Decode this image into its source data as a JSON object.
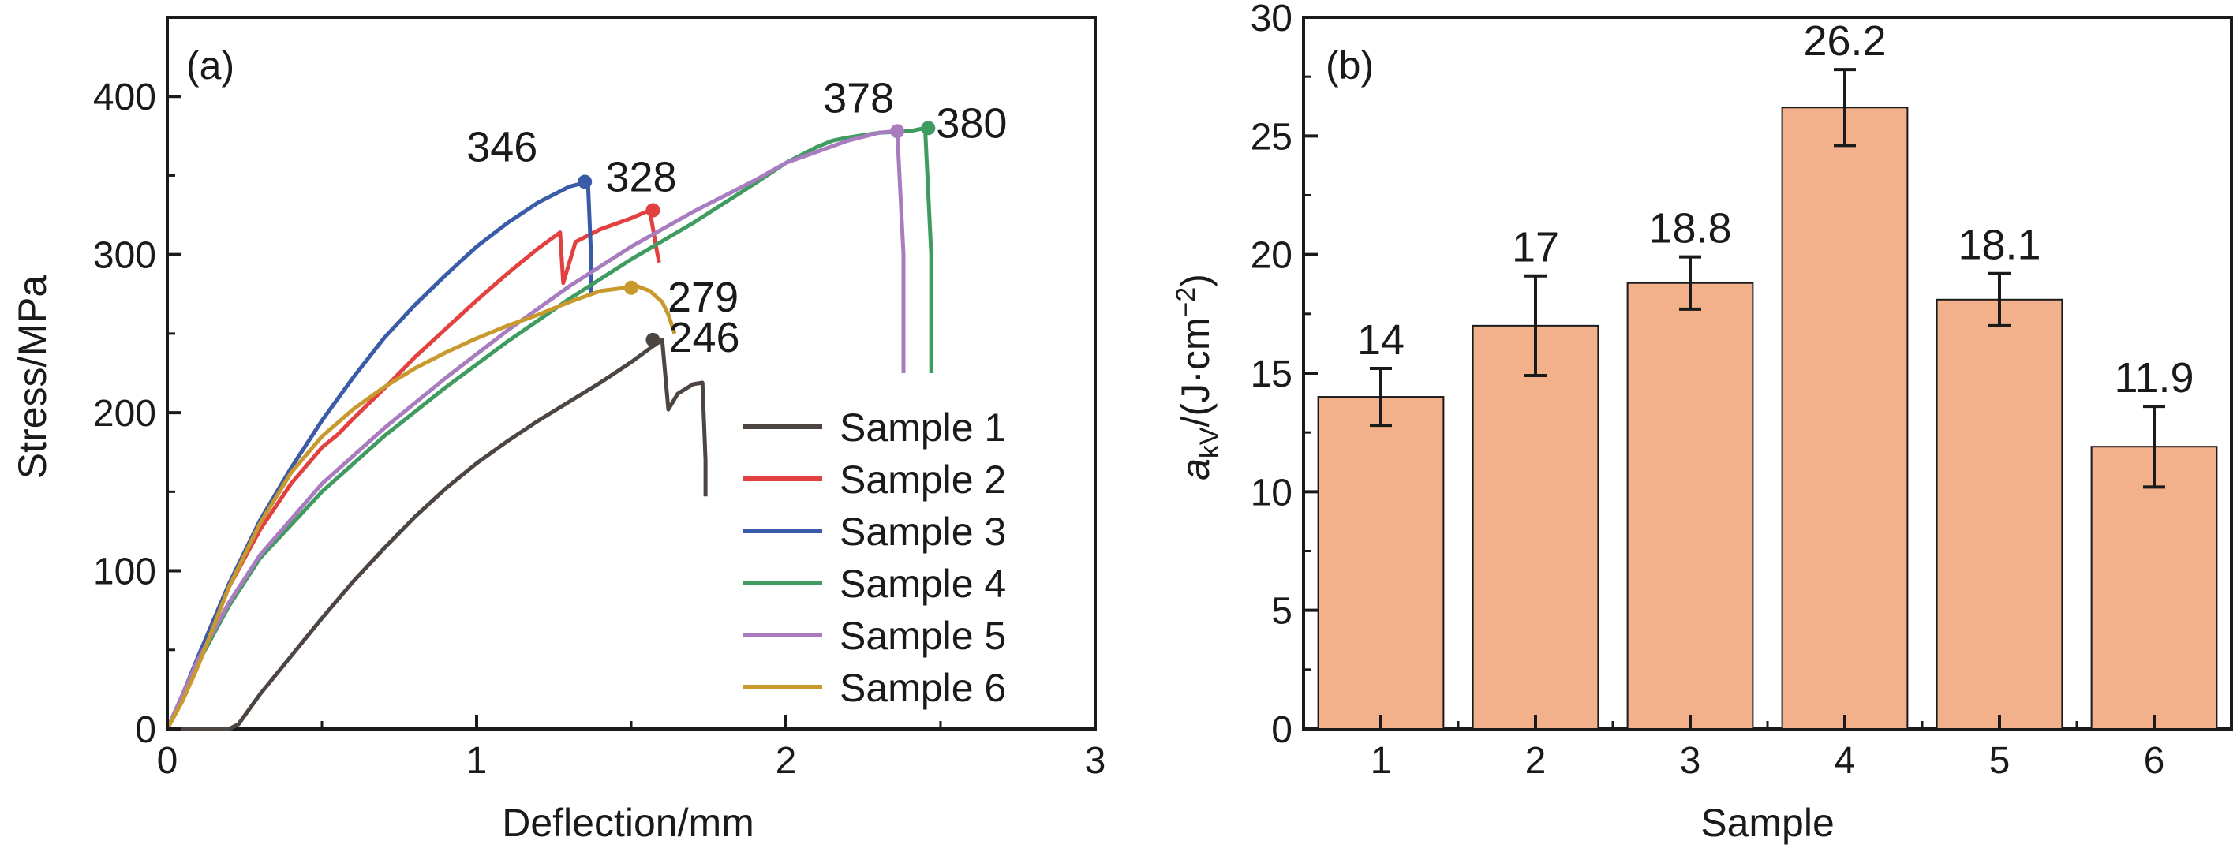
{
  "chart_data": [
    {
      "id": "a",
      "type": "line",
      "panel_label": "(a)",
      "xlabel": "Deflection/mm",
      "ylabel": "Stress/MPa",
      "xlim": [
        0,
        3
      ],
      "ylim": [
        0,
        450
      ],
      "xticks": [
        0,
        1,
        2,
        3
      ],
      "yticks": [
        0,
        100,
        200,
        300,
        400
      ],
      "grid": false,
      "legend_position": "bottom-right",
      "series": [
        {
          "name": "Sample 1",
          "color": "#4d4542",
          "x": [
            0,
            0.2,
            0.23,
            0.3,
            0.4,
            0.5,
            0.6,
            0.7,
            0.8,
            0.9,
            1.0,
            1.1,
            1.2,
            1.3,
            1.4,
            1.5,
            1.57,
            1.6,
            1.62,
            1.65,
            1.7,
            1.73,
            1.74,
            1.74
          ],
          "y": [
            0,
            0,
            3,
            22,
            46,
            70,
            93,
            114,
            134,
            152,
            168,
            182,
            195,
            207,
            219,
            232,
            242,
            246,
            202,
            212,
            218,
            219,
            170,
            147
          ],
          "peak": {
            "x": 1.57,
            "y": 246,
            "label": "246"
          }
        },
        {
          "name": "Sample 2",
          "color": "#e2413f",
          "x": [
            0,
            0.05,
            0.1,
            0.2,
            0.3,
            0.4,
            0.5,
            0.55,
            0.6,
            0.7,
            0.8,
            0.9,
            1.0,
            1.1,
            1.2,
            1.27,
            1.28,
            1.32,
            1.4,
            1.5,
            1.56,
            1.58,
            1.59
          ],
          "y": [
            0,
            20,
            44,
            90,
            126,
            155,
            178,
            186,
            196,
            215,
            235,
            253,
            271,
            288,
            304,
            314,
            282,
            308,
            316,
            323,
            328,
            305,
            295
          ],
          "peak": {
            "x": 1.57,
            "y": 328,
            "label": "328"
          }
        },
        {
          "name": "Sample 3",
          "color": "#3a5ca8",
          "x": [
            0,
            0.05,
            0.1,
            0.2,
            0.3,
            0.4,
            0.5,
            0.6,
            0.7,
            0.8,
            0.9,
            1.0,
            1.1,
            1.2,
            1.3,
            1.36,
            1.37,
            1.37
          ],
          "y": [
            0,
            22,
            46,
            92,
            132,
            165,
            195,
            222,
            247,
            268,
            287,
            305,
            320,
            333,
            343,
            346,
            300,
            275
          ],
          "peak": {
            "x": 1.35,
            "y": 346,
            "label": "346"
          }
        },
        {
          "name": "Sample 4",
          "color": "#3f9b60",
          "x": [
            0,
            0.05,
            0.1,
            0.2,
            0.3,
            0.5,
            0.7,
            0.9,
            1.1,
            1.3,
            1.5,
            1.7,
            1.9,
            2.0,
            2.1,
            2.15,
            2.2,
            2.3,
            2.4,
            2.45,
            2.47,
            2.47
          ],
          "y": [
            0,
            20,
            42,
            78,
            108,
            150,
            185,
            216,
            245,
            272,
            297,
            320,
            345,
            358,
            368,
            372,
            374,
            377,
            378,
            380,
            300,
            225
          ],
          "peak": {
            "x": 2.46,
            "y": 380,
            "label": "380"
          }
        },
        {
          "name": "Sample 5",
          "color": "#a87cbf",
          "x": [
            0,
            0.05,
            0.1,
            0.2,
            0.3,
            0.5,
            0.7,
            0.9,
            1.1,
            1.3,
            1.5,
            1.7,
            1.9,
            2.0,
            2.1,
            2.2,
            2.3,
            2.36,
            2.38,
            2.38
          ],
          "y": [
            0,
            22,
            44,
            80,
            110,
            155,
            190,
            222,
            252,
            280,
            305,
            327,
            347,
            358,
            365,
            372,
            377,
            378,
            300,
            225
          ],
          "peak": {
            "x": 2.36,
            "y": 378,
            "label": "378"
          }
        },
        {
          "name": "Sample 6",
          "color": "#c89a2e",
          "x": [
            0,
            0.05,
            0.1,
            0.2,
            0.3,
            0.4,
            0.5,
            0.6,
            0.7,
            0.8,
            0.9,
            1.0,
            1.1,
            1.2,
            1.3,
            1.4,
            1.48,
            1.52,
            1.56,
            1.6,
            1.62,
            1.64
          ],
          "y": [
            0,
            18,
            40,
            90,
            130,
            162,
            185,
            202,
            216,
            228,
            238,
            247,
            255,
            262,
            270,
            277,
            279,
            280,
            277,
            270,
            262,
            250
          ],
          "peak": {
            "x": 1.5,
            "y": 279,
            "label": "279"
          }
        }
      ]
    },
    {
      "id": "b",
      "type": "bar",
      "panel_label": "(b)",
      "xlabel": "Sample",
      "ylabel": {
        "base": "a",
        "sub": "kV",
        "rest": "/(J·cm",
        "sup": "−2",
        "close": ")"
      },
      "categories": [
        "1",
        "2",
        "3",
        "4",
        "5",
        "6"
      ],
      "values": [
        14,
        17,
        18.8,
        26.2,
        18.1,
        11.9
      ],
      "value_labels": [
        "14",
        "17",
        "18.8",
        "26.2",
        "18.1",
        "11.9"
      ],
      "errors": [
        1.2,
        2.1,
        1.1,
        1.6,
        1.1,
        1.7
      ],
      "ylim": [
        0,
        30
      ],
      "yticks": [
        0,
        5,
        10,
        15,
        20,
        25,
        30
      ],
      "bar_color": "#f2b08b",
      "grid": false
    }
  ]
}
